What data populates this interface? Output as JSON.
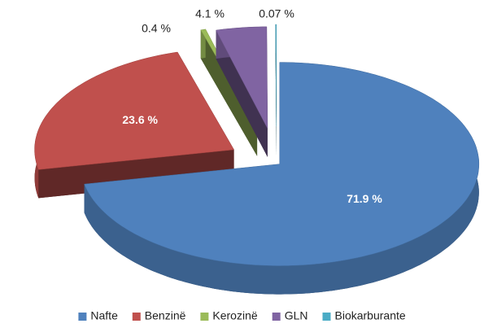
{
  "chart_data": {
    "type": "pie3d",
    "categories": [
      "Nafte",
      "Benzinë",
      "Kerozinë",
      "GLN",
      "Biokarburante"
    ],
    "values": [
      71.9,
      23.6,
      0.4,
      4.1,
      0.07
    ],
    "value_labels": [
      "71.9 %",
      "23.6 %",
      "0.4 %",
      "4.1 %",
      "0.07 %"
    ],
    "colors": [
      "#4f81bd",
      "#c0504d",
      "#9bbb59",
      "#8064a2",
      "#4bacc6"
    ],
    "legend": "bottom"
  }
}
